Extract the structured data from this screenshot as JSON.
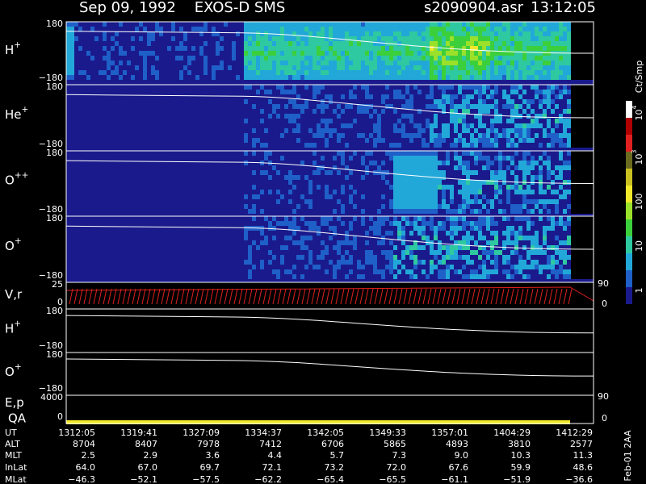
{
  "header": {
    "title": "Sep 09, 1992    EXOS-D SMS",
    "file": "s2090904.asr",
    "time": "13:12:05"
  },
  "panels": [
    {
      "label": {
        "base": "H",
        "sup": "+"
      },
      "top": "180",
      "bottom": "−180"
    },
    {
      "label": {
        "base": "He",
        "sup": "+"
      },
      "top": "180",
      "bottom": "−180"
    },
    {
      "label": {
        "base": "O",
        "sup": "++"
      },
      "top": "180",
      "bottom": "−180"
    },
    {
      "label": {
        "base": "O",
        "sup": "+"
      },
      "top": "180",
      "bottom": "−180"
    },
    {
      "label": {
        "base": "V,r",
        "sup": ""
      },
      "top": "25",
      "bottom": "0",
      "right_top": "90",
      "right_bottom": "0"
    },
    {
      "label": {
        "base": "H",
        "sup": "+"
      },
      "top": "180",
      "bottom": "−180"
    },
    {
      "label": {
        "base": "O",
        "sup": "+"
      },
      "top": "180",
      "bottom": "−180"
    },
    {
      "label": {
        "base": "E,p",
        "sup": ""
      },
      "label2": "QA",
      "top": "4000",
      "bottom": "0",
      "right_top": "90",
      "right_bottom": "0"
    }
  ],
  "colorbar": {
    "title": "Ct/Smp",
    "ticks": [
      {
        "base": "10",
        "sup": "4"
      },
      {
        "base": "10",
        "sup": "3"
      },
      {
        "base": "100",
        "sup": ""
      },
      {
        "base": "10",
        "sup": ""
      },
      {
        "base": "1",
        "sup": ""
      }
    ]
  },
  "footer": {
    "rows": [
      {
        "name": "UT",
        "values": [
          "1312:05",
          "1319:41",
          "1327:09",
          "1334:37",
          "1342:05",
          "1349:33",
          "1357:01",
          "1404:29",
          "1412:29"
        ]
      },
      {
        "name": "ALT",
        "values": [
          "8704",
          "8407",
          "7978",
          "7412",
          "6706",
          "5865",
          "4893",
          "3810",
          "2577"
        ]
      },
      {
        "name": "MLT",
        "values": [
          "2.5",
          "2.9",
          "3.6",
          "4.4",
          "5.7",
          "7.3",
          "9.0",
          "10.3",
          "11.3"
        ]
      },
      {
        "name": "InLat",
        "values": [
          "64.0",
          "67.0",
          "69.7",
          "72.1",
          "73.2",
          "72.0",
          "67.6",
          "59.9",
          "48.6"
        ]
      },
      {
        "name": "MLat",
        "values": [
          "−46.3",
          "−52.1",
          "−57.5",
          "−62.2",
          "−65.4",
          "−65.5",
          "−61.1",
          "−51.9",
          "−36.6"
        ]
      }
    ],
    "note": "Feb-01 2AA"
  }
}
